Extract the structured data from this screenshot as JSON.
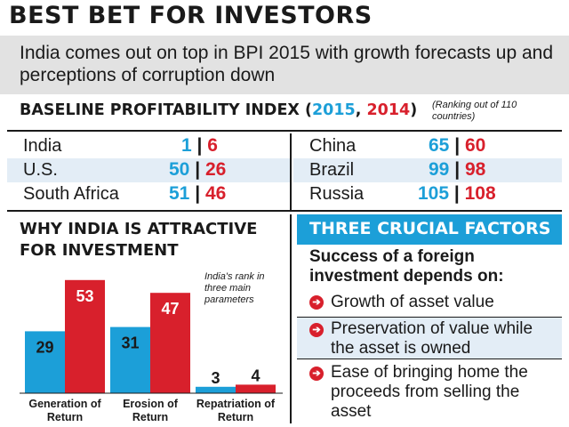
{
  "title": "BEST BET FOR INVESTORS",
  "intro": "India comes out on top in BPI 2015 with growth forecasts up and perceptions of corruption down",
  "bpi": {
    "heading": "BASELINE PROFITABILITY INDEX",
    "paren_open": " (",
    "year_2015": "2015",
    "comma": ", ",
    "year_2014": "2014",
    "paren_close": ")",
    "note": "(Ranking out of 110 countries)",
    "colors": {
      "2015": "#1c9fd8",
      "2014": "#d8202c"
    },
    "rows": [
      {
        "country": "India",
        "r2015": "1",
        "r2014": "6"
      },
      {
        "country": "U.S.",
        "r2015": "50",
        "r2014": "26"
      },
      {
        "country": "South Africa",
        "r2015": "51",
        "r2014": "46"
      },
      {
        "country": "China",
        "r2015": "65",
        "r2014": "60"
      },
      {
        "country": "Brazil",
        "r2015": "99",
        "r2014": "98"
      },
      {
        "country": "Russia",
        "r2015": "105",
        "r2014": "108"
      }
    ],
    "separator": "|"
  },
  "why": {
    "title_line1": "WHY INDIA IS ATTRACTIVE",
    "title_line2": "FOR INVESTMENT",
    "note": "India's rank in three main parameters"
  },
  "chart_data": {
    "type": "bar",
    "categories": [
      "Generation of Return",
      "Erosion of Return",
      "Repatriation of Return"
    ],
    "category_lines": [
      [
        "Generation of",
        "Return"
      ],
      [
        "Erosion of",
        "Return"
      ],
      [
        "Repatriation of",
        "Return"
      ]
    ],
    "series": [
      {
        "name": "2015",
        "color": "#1c9fd8",
        "values": [
          29,
          31,
          3
        ]
      },
      {
        "name": "2014",
        "color": "#d8202c",
        "values": [
          53,
          47,
          4
        ]
      }
    ],
    "ylim": [
      0,
      60
    ],
    "grid": false,
    "legend": "none"
  },
  "factors": {
    "heading": "THREE CRUCIAL FACTORS",
    "lead": "Success of a foreign investment depends on:",
    "items": [
      "Growth of asset value",
      "Preservation of value while the asset is owned",
      "Ease of bringing home the proceeds from selling the asset"
    ],
    "bullet_icon": "arrow-right-circle-icon"
  }
}
